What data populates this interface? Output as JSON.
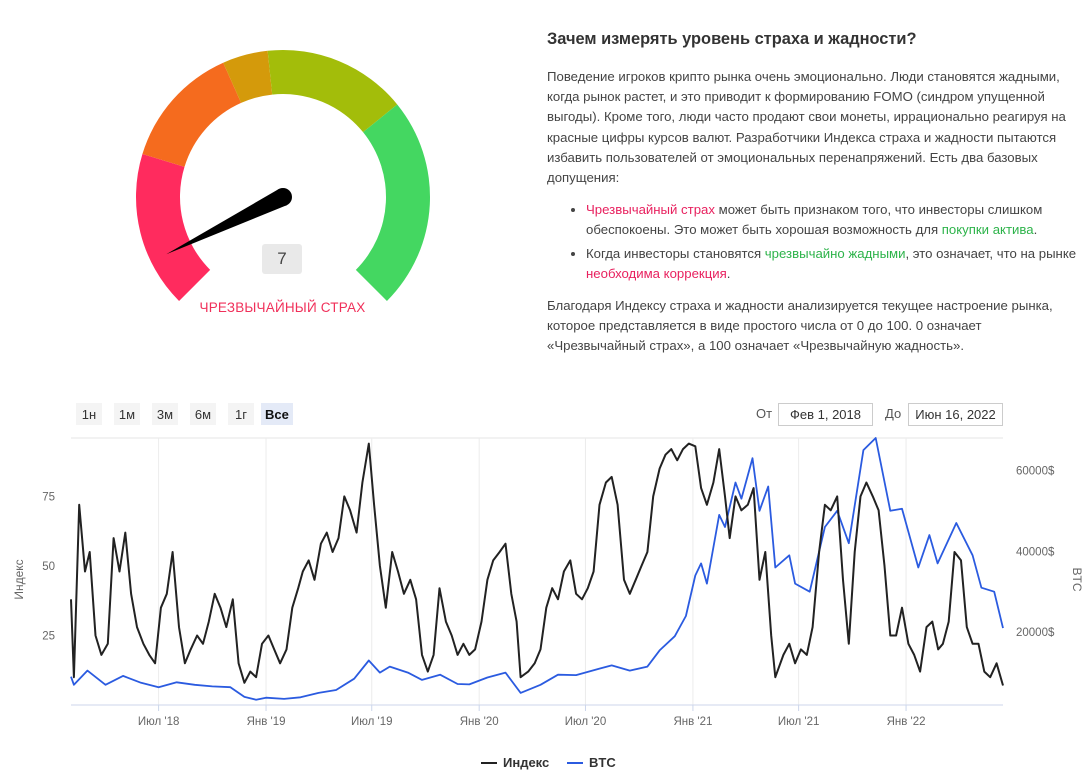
{
  "gauge": {
    "value": "7",
    "value_numeric": 7,
    "label": "ЧРЕЗВЫЧАЙНЫЙ СТРАХ",
    "segment_colors": [
      "#ff2b5e",
      "#f56b1e",
      "#d49a0b",
      "#a3bd0a",
      "#44d761"
    ],
    "needle_color": "#000000"
  },
  "article": {
    "title": "Зачем измерять уровень страха и жадности?",
    "intro": "Поведение игроков крипто рынка очень эмоционально. Люди становятся жадными, когда рынок растет, и это приводит к формированию FOMO (синдром упущенной выгоды). Кроме того, люди часто продают свои монеты, иррационально реагируя на красные цифры курсов валют. Разработчики Индекса страха и жадности пытаются избавить пользователей от эмоциональных перенапряжений. Есть два базовых допущения:",
    "bullet1": {
      "highlight": "Чрезвычайный страх",
      "text": " может быть признаком того, что инвесторы слишком обеспокоены. Это может быть хорошая возможность для ",
      "highlight2": "покупки актива",
      "end": "."
    },
    "bullet2": {
      "text": "Когда инвесторы становятся ",
      "highlight": "чрезвычайно жадными",
      "text2": ", это означает, что на рынке ",
      "highlight2": "необходима коррекция",
      "end": "."
    },
    "outro": "Благодаря Индексу страха и жадности анализируется текущее настроение рынка, которое представляется в виде простого числа от 0 до 100. 0 означает «Чрезвычайный страх», а 100 означает «Чрезвычайную жадность»."
  },
  "controls": {
    "ranges": [
      "1н",
      "1м",
      "3м",
      "6м",
      "1г",
      "Все"
    ],
    "active_range": "Все",
    "from_label": "От",
    "from_value": "Фев 1, 2018",
    "to_label": "До",
    "to_value": "Июн 16, 2022"
  },
  "chart_data": {
    "type": "line",
    "x_range": [
      "2018-02-01",
      "2022-06-16"
    ],
    "x_ticks": [
      {
        "label": "Июл '18",
        "date": "2018-07-01"
      },
      {
        "label": "Янв '19",
        "date": "2019-01-01"
      },
      {
        "label": "Июл '19",
        "date": "2019-07-01"
      },
      {
        "label": "Янв '20",
        "date": "2020-01-01"
      },
      {
        "label": "Июл '20",
        "date": "2020-07-01"
      },
      {
        "label": "Янв '21",
        "date": "2021-01-01"
      },
      {
        "label": "Июл '21",
        "date": "2021-07-01"
      },
      {
        "label": "Янв '22",
        "date": "2022-01-01"
      }
    ],
    "y_left": {
      "label": "Индекс",
      "ticks": [
        "25",
        "50",
        "75"
      ],
      "range": [
        0,
        96
      ]
    },
    "y_right": {
      "label": "BTC",
      "ticks": [
        "20000$",
        "40000$",
        "60000$"
      ],
      "range": [
        2000,
        68000
      ]
    },
    "grid": "vertical",
    "legend_position": "bottom-center",
    "series": [
      {
        "name": "Индекс",
        "color": "#222222",
        "axis": "left",
        "points": [
          [
            "2018-02-01",
            38
          ],
          [
            "2018-02-06",
            10
          ],
          [
            "2018-02-15",
            72
          ],
          [
            "2018-02-25",
            48
          ],
          [
            "2018-03-05",
            55
          ],
          [
            "2018-03-15",
            25
          ],
          [
            "2018-03-25",
            18
          ],
          [
            "2018-04-05",
            22
          ],
          [
            "2018-04-15",
            60
          ],
          [
            "2018-04-25",
            48
          ],
          [
            "2018-05-05",
            62
          ],
          [
            "2018-05-15",
            40
          ],
          [
            "2018-05-25",
            28
          ],
          [
            "2018-06-05",
            22
          ],
          [
            "2018-06-15",
            18
          ],
          [
            "2018-06-25",
            15
          ],
          [
            "2018-07-05",
            35
          ],
          [
            "2018-07-15",
            40
          ],
          [
            "2018-07-25",
            55
          ],
          [
            "2018-08-05",
            28
          ],
          [
            "2018-08-15",
            15
          ],
          [
            "2018-08-25",
            20
          ],
          [
            "2018-09-05",
            25
          ],
          [
            "2018-09-15",
            22
          ],
          [
            "2018-09-25",
            30
          ],
          [
            "2018-10-05",
            40
          ],
          [
            "2018-10-15",
            35
          ],
          [
            "2018-10-25",
            28
          ],
          [
            "2018-11-05",
            38
          ],
          [
            "2018-11-15",
            15
          ],
          [
            "2018-11-25",
            8
          ],
          [
            "2018-12-05",
            12
          ],
          [
            "2018-12-15",
            10
          ],
          [
            "2018-12-25",
            22
          ],
          [
            "2019-01-05",
            25
          ],
          [
            "2019-01-15",
            20
          ],
          [
            "2019-01-25",
            15
          ],
          [
            "2019-02-05",
            20
          ],
          [
            "2019-02-15",
            35
          ],
          [
            "2019-02-25",
            42
          ],
          [
            "2019-03-05",
            48
          ],
          [
            "2019-03-15",
            52
          ],
          [
            "2019-03-25",
            45
          ],
          [
            "2019-04-05",
            58
          ],
          [
            "2019-04-15",
            62
          ],
          [
            "2019-04-25",
            55
          ],
          [
            "2019-05-05",
            60
          ],
          [
            "2019-05-15",
            75
          ],
          [
            "2019-05-25",
            70
          ],
          [
            "2019-06-05",
            62
          ],
          [
            "2019-06-15",
            80
          ],
          [
            "2019-06-26",
            94
          ],
          [
            "2019-07-05",
            72
          ],
          [
            "2019-07-15",
            50
          ],
          [
            "2019-07-25",
            35
          ],
          [
            "2019-08-05",
            55
          ],
          [
            "2019-08-15",
            48
          ],
          [
            "2019-08-25",
            40
          ],
          [
            "2019-09-05",
            45
          ],
          [
            "2019-09-15",
            38
          ],
          [
            "2019-09-25",
            18
          ],
          [
            "2019-10-05",
            12
          ],
          [
            "2019-10-15",
            18
          ],
          [
            "2019-10-25",
            42
          ],
          [
            "2019-11-05",
            30
          ],
          [
            "2019-11-15",
            25
          ],
          [
            "2019-11-25",
            18
          ],
          [
            "2019-12-05",
            22
          ],
          [
            "2019-12-15",
            18
          ],
          [
            "2019-12-25",
            20
          ],
          [
            "2020-01-05",
            30
          ],
          [
            "2020-01-15",
            45
          ],
          [
            "2020-01-25",
            52
          ],
          [
            "2020-02-05",
            55
          ],
          [
            "2020-02-15",
            58
          ],
          [
            "2020-02-25",
            40
          ],
          [
            "2020-03-05",
            30
          ],
          [
            "2020-03-12",
            10
          ],
          [
            "2020-03-25",
            12
          ],
          [
            "2020-04-05",
            15
          ],
          [
            "2020-04-15",
            20
          ],
          [
            "2020-04-25",
            35
          ],
          [
            "2020-05-05",
            42
          ],
          [
            "2020-05-15",
            38
          ],
          [
            "2020-05-25",
            48
          ],
          [
            "2020-06-05",
            52
          ],
          [
            "2020-06-15",
            40
          ],
          [
            "2020-06-25",
            38
          ],
          [
            "2020-07-05",
            42
          ],
          [
            "2020-07-15",
            48
          ],
          [
            "2020-07-25",
            72
          ],
          [
            "2020-08-05",
            80
          ],
          [
            "2020-08-15",
            82
          ],
          [
            "2020-08-25",
            72
          ],
          [
            "2020-09-05",
            45
          ],
          [
            "2020-09-15",
            40
          ],
          [
            "2020-09-25",
            45
          ],
          [
            "2020-10-05",
            50
          ],
          [
            "2020-10-15",
            55
          ],
          [
            "2020-10-25",
            75
          ],
          [
            "2020-11-05",
            85
          ],
          [
            "2020-11-15",
            90
          ],
          [
            "2020-11-25",
            92
          ],
          [
            "2020-12-05",
            88
          ],
          [
            "2020-12-15",
            92
          ],
          [
            "2020-12-25",
            94
          ],
          [
            "2021-01-05",
            93
          ],
          [
            "2021-01-15",
            78
          ],
          [
            "2021-01-25",
            72
          ],
          [
            "2021-02-05",
            80
          ],
          [
            "2021-02-15",
            92
          ],
          [
            "2021-02-25",
            75
          ],
          [
            "2021-03-05",
            60
          ],
          [
            "2021-03-15",
            75
          ],
          [
            "2021-03-25",
            70
          ],
          [
            "2021-04-05",
            72
          ],
          [
            "2021-04-15",
            78
          ],
          [
            "2021-04-25",
            45
          ],
          [
            "2021-05-05",
            55
          ],
          [
            "2021-05-15",
            25
          ],
          [
            "2021-05-22",
            10
          ],
          [
            "2021-06-05",
            18
          ],
          [
            "2021-06-15",
            22
          ],
          [
            "2021-06-25",
            15
          ],
          [
            "2021-07-05",
            20
          ],
          [
            "2021-07-15",
            18
          ],
          [
            "2021-07-25",
            28
          ],
          [
            "2021-08-05",
            55
          ],
          [
            "2021-08-15",
            72
          ],
          [
            "2021-08-25",
            70
          ],
          [
            "2021-09-05",
            75
          ],
          [
            "2021-09-15",
            45
          ],
          [
            "2021-09-25",
            22
          ],
          [
            "2021-10-05",
            55
          ],
          [
            "2021-10-15",
            75
          ],
          [
            "2021-10-25",
            80
          ],
          [
            "2021-11-05",
            75
          ],
          [
            "2021-11-15",
            70
          ],
          [
            "2021-11-25",
            50
          ],
          [
            "2021-12-05",
            25
          ],
          [
            "2021-12-15",
            25
          ],
          [
            "2021-12-25",
            35
          ],
          [
            "2022-01-05",
            22
          ],
          [
            "2022-01-15",
            18
          ],
          [
            "2022-01-25",
            12
          ],
          [
            "2022-02-05",
            28
          ],
          [
            "2022-02-15",
            30
          ],
          [
            "2022-02-25",
            20
          ],
          [
            "2022-03-05",
            22
          ],
          [
            "2022-03-15",
            30
          ],
          [
            "2022-03-25",
            55
          ],
          [
            "2022-04-05",
            52
          ],
          [
            "2022-04-15",
            28
          ],
          [
            "2022-04-25",
            22
          ],
          [
            "2022-05-05",
            22
          ],
          [
            "2022-05-15",
            12
          ],
          [
            "2022-05-25",
            10
          ],
          [
            "2022-06-05",
            15
          ],
          [
            "2022-06-16",
            7
          ]
        ]
      },
      {
        "name": "BTC",
        "color": "#2b5be0",
        "axis": "right",
        "points": [
          [
            "2018-02-01",
            9000
          ],
          [
            "2018-02-06",
            7000
          ],
          [
            "2018-03-01",
            10500
          ],
          [
            "2018-04-01",
            7000
          ],
          [
            "2018-05-01",
            9200
          ],
          [
            "2018-06-01",
            7500
          ],
          [
            "2018-07-01",
            6400
          ],
          [
            "2018-08-01",
            7600
          ],
          [
            "2018-09-01",
            7000
          ],
          [
            "2018-10-01",
            6600
          ],
          [
            "2018-11-01",
            6400
          ],
          [
            "2018-11-25",
            4000
          ],
          [
            "2018-12-15",
            3300
          ],
          [
            "2019-01-01",
            3800
          ],
          [
            "2019-02-01",
            3500
          ],
          [
            "2019-03-01",
            3900
          ],
          [
            "2019-04-01",
            5000
          ],
          [
            "2019-05-01",
            5700
          ],
          [
            "2019-06-01",
            8500
          ],
          [
            "2019-06-26",
            13000
          ],
          [
            "2019-07-15",
            10000
          ],
          [
            "2019-08-01",
            11500
          ],
          [
            "2019-09-01",
            10000
          ],
          [
            "2019-09-25",
            8200
          ],
          [
            "2019-10-26",
            9500
          ],
          [
            "2019-11-25",
            7200
          ],
          [
            "2019-12-15",
            7100
          ],
          [
            "2020-01-15",
            8800
          ],
          [
            "2020-02-15",
            10000
          ],
          [
            "2020-03-12",
            5000
          ],
          [
            "2020-04-15",
            7000
          ],
          [
            "2020-05-15",
            9500
          ],
          [
            "2020-06-15",
            9400
          ],
          [
            "2020-07-25",
            11000
          ],
          [
            "2020-08-15",
            11800
          ],
          [
            "2020-09-15",
            10500
          ],
          [
            "2020-10-15",
            11500
          ],
          [
            "2020-11-05",
            15500
          ],
          [
            "2020-12-01",
            19000
          ],
          [
            "2020-12-20",
            24000
          ],
          [
            "2021-01-05",
            34000
          ],
          [
            "2021-01-15",
            37000
          ],
          [
            "2021-01-25",
            32000
          ],
          [
            "2021-02-15",
            49000
          ],
          [
            "2021-02-25",
            46000
          ],
          [
            "2021-03-15",
            57000
          ],
          [
            "2021-03-25",
            53000
          ],
          [
            "2021-04-13",
            63000
          ],
          [
            "2021-04-25",
            50000
          ],
          [
            "2021-05-10",
            56000
          ],
          [
            "2021-05-22",
            36000
          ],
          [
            "2021-06-15",
            39000
          ],
          [
            "2021-06-25",
            32000
          ],
          [
            "2021-07-20",
            30000
          ],
          [
            "2021-08-15",
            46000
          ],
          [
            "2021-09-05",
            50000
          ],
          [
            "2021-09-25",
            42000
          ],
          [
            "2021-10-20",
            65000
          ],
          [
            "2021-11-10",
            68000
          ],
          [
            "2021-12-05",
            50000
          ],
          [
            "2021-12-25",
            50500
          ],
          [
            "2022-01-22",
            36000
          ],
          [
            "2022-02-10",
            44000
          ],
          [
            "2022-02-24",
            37000
          ],
          [
            "2022-03-28",
            47000
          ],
          [
            "2022-04-25",
            39000
          ],
          [
            "2022-05-10",
            31000
          ],
          [
            "2022-06-01",
            30000
          ],
          [
            "2022-06-16",
            21000
          ]
        ]
      }
    ]
  }
}
